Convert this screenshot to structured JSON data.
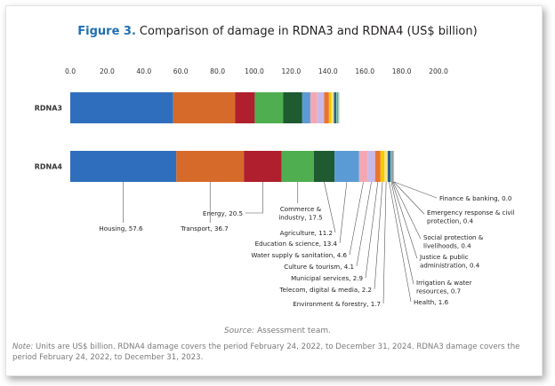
{
  "chart_data": {
    "type": "bar",
    "orientation": "horizontal",
    "stacked": true,
    "title_prefix": "Figure 3.",
    "title": "Comparison of damage in RDNA3 and RDNA4 (US$ billion)",
    "categories": [
      "RDNA3",
      "RDNA4"
    ],
    "xlim": [
      0,
      200
    ],
    "xticks": [
      "0.0",
      "20.0",
      "40.0",
      "60.0",
      "80.0",
      "100.0",
      "120.0",
      "140.0",
      "160.0",
      "180.0",
      "200.0"
    ],
    "legend": "none",
    "series": [
      {
        "name": "Housing",
        "color": "#2f6ebd",
        "values": [
          55.9,
          57.6
        ],
        "label": "Housing, 57.6"
      },
      {
        "name": "Transport",
        "color": "#d66a2a",
        "values": [
          33.7,
          36.7
        ],
        "label": "Transport, 36.7"
      },
      {
        "name": "Energy",
        "color": "#b01f2e",
        "values": [
          10.6,
          20.5
        ],
        "label": "Energy, 20.5"
      },
      {
        "name": "Commerce & industry",
        "color": "#4fae4f",
        "values": [
          15.5,
          17.5
        ],
        "label": "Commerce & industry, 17.5"
      },
      {
        "name": "Agriculture",
        "color": "#1f5a30",
        "values": [
          10.3,
          11.2
        ],
        "label": "Agriculture, 11.2"
      },
      {
        "name": "Education & science",
        "color": "#5b9bd5",
        "values": [
          4.4,
          13.4
        ],
        "label": "Education & science, 13.4"
      },
      {
        "name": "Water supply & sanitation",
        "color": "#f2a8b4",
        "values": [
          3.8,
          4.6
        ],
        "label": "Water supply & sanitation, 4.6"
      },
      {
        "name": "Culture & tourism",
        "color": "#c9b9e8",
        "values": [
          3.7,
          4.1
        ],
        "label": "Culture & tourism, 4.1"
      },
      {
        "name": "Municipal services",
        "color": "#e8752d",
        "values": [
          2.6,
          2.9
        ],
        "label": "Municipal services, 2.9"
      },
      {
        "name": "Telecom, digital & media",
        "color": "#f5c800",
        "values": [
          1.4,
          2.2
        ],
        "label": "Telecom, digital & media, 2.2"
      },
      {
        "name": "Environment & forestry",
        "color": "#f4e58a",
        "values": [
          1.3,
          1.7
        ],
        "label": "Environment & forestry, 1.7"
      },
      {
        "name": "Health",
        "color": "#2d5f8e",
        "values": [
          1.3,
          1.6
        ],
        "label": "Health, 1.6"
      },
      {
        "name": "Irrigation & water resources",
        "color": "#7dc8b4",
        "values": [
          0.4,
          0.7
        ],
        "label": "Irrigation & water resources, 0.7"
      },
      {
        "name": "Justice & public administration",
        "color": "#8c564b",
        "values": [
          0.4,
          0.4
        ],
        "label": "Justice & public administration, 0.4"
      },
      {
        "name": "Social protection & livelihoods",
        "color": "#a5c8e1",
        "values": [
          0.4,
          0.4
        ],
        "label": "Social protection & livelihoods, 0.4"
      },
      {
        "name": "Emergency response & civil protection",
        "color": "#8fd07a",
        "values": [
          0.4,
          0.4
        ],
        "label": "Emergency response & civil protection, 0.4"
      },
      {
        "name": "Finance & banking",
        "color": "#d9d9d9",
        "values": [
          0.0,
          0.0
        ],
        "label": "Finance & banking, 0.0"
      }
    ]
  },
  "footer": {
    "source_label": "Source:",
    "source_text": "Assessment team.",
    "note_label": "Note:",
    "note_text": "Units are US$ billion. RDNA4 damage covers the period February 24, 2022, to December 31, 2024. RDNA3 damage covers the period February 24, 2022, to December 31, 2023."
  }
}
